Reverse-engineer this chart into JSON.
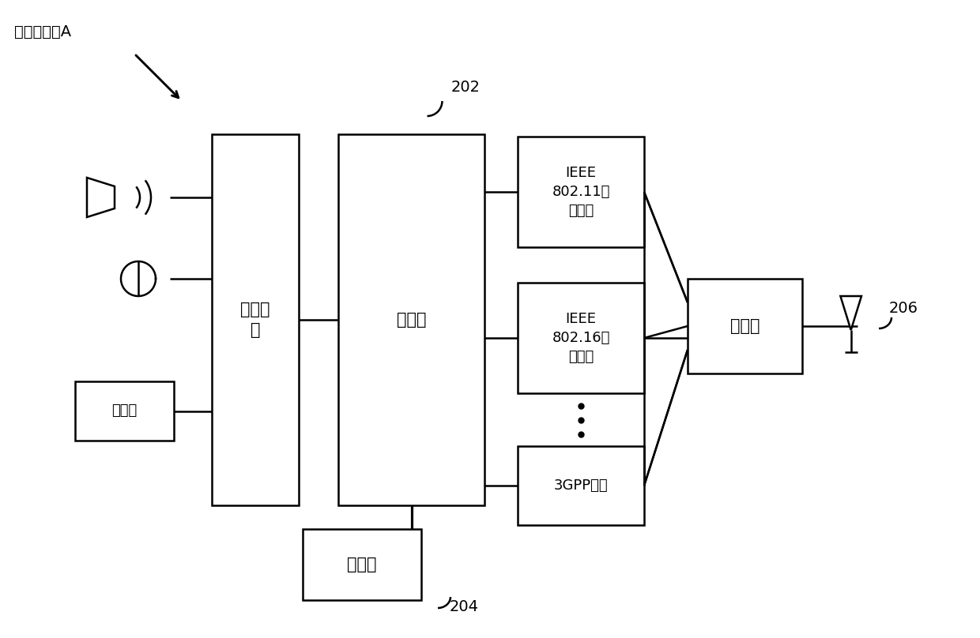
{
  "bg_color": "#ffffff",
  "line_color": "#000000",
  "title_label": "计算机终端A",
  "label_202": "202",
  "label_204": "204",
  "label_206": "206",
  "user_interface_label": "用户接\n口",
  "processor_label": "处理器",
  "ieee80211_label": "IEEE\n802.11网\n络接口",
  "ieee80216_label": "IEEE\n802.16网\n络接口",
  "gpp3_label": "3GPP接口",
  "coupler_label": "耦合器",
  "storage_label": "存储器",
  "display_label": "显示器",
  "lw": 1.8,
  "fontsize_main": 15,
  "fontsize_small": 13,
  "fontsize_label": 14
}
